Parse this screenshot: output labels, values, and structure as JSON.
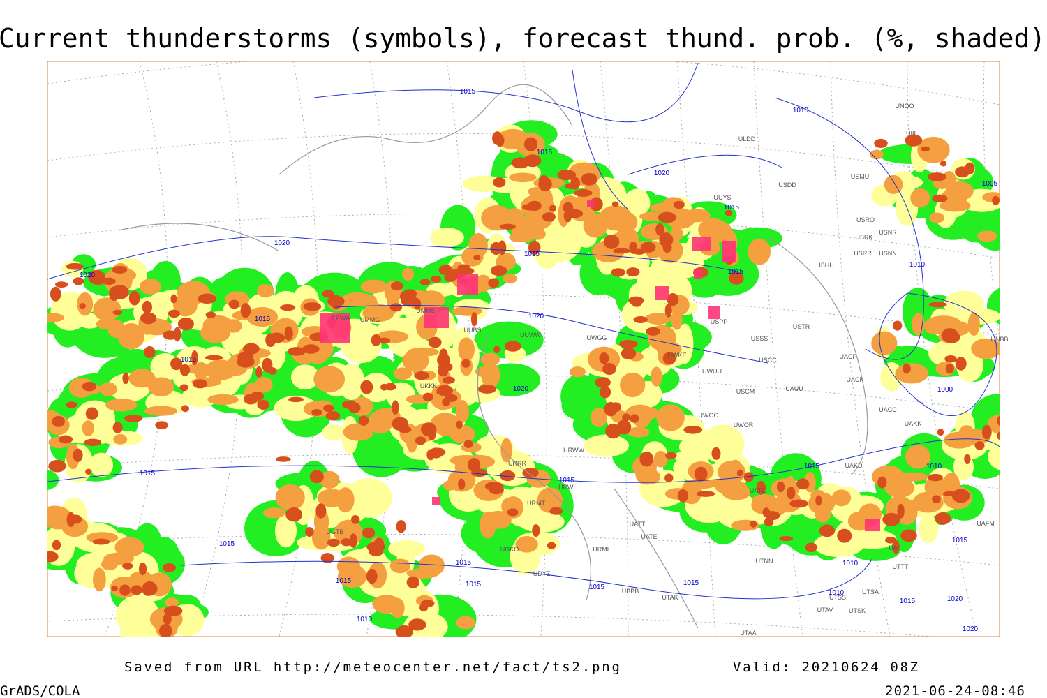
{
  "title": "Current thunderstorms (symbols), forecast thund. prob. (%, shaded)",
  "footer": {
    "source": "Saved from URL http://meteocenter.net/fact/ts2.png",
    "valid": "Valid: 20210624 08Z",
    "software": "GrADS/COLA",
    "timestamp": "2021-06-24-08:46"
  },
  "isobar_labels": [
    "1015",
    "1010",
    "1020",
    "1015",
    "1015",
    "1020",
    "1020",
    "1015",
    "1015",
    "1010",
    "1020",
    "1015",
    "1015",
    "1020",
    "1000",
    "1015",
    "1015",
    "1015",
    "1010",
    "1015",
    "1015",
    "1015",
    "1015",
    "1015",
    "1015",
    "1010",
    "1015",
    "1010",
    "1015",
    "1020",
    "1020",
    "1005",
    "1010"
  ],
  "station_labels": [
    "ULDD",
    "UUYS",
    "USMU",
    "USDD",
    "USRO",
    "USRK",
    "USNR",
    "USRR",
    "USNN",
    "USHH",
    "USTR",
    "USSS",
    "USCC",
    "UWUU",
    "USCM",
    "UAUU",
    "UACP",
    "UACK",
    "UACC",
    "UAKK",
    "UAKD",
    "UWOO",
    "UWOR",
    "USPP",
    "UWKE",
    "UWGG",
    "UUWW",
    "UUBS",
    "UMMS",
    "UMMG",
    "EPWA",
    "UKKK",
    "URWW",
    "URWI",
    "URRR",
    "URMT",
    "UGTB",
    "UBBB",
    "UTAK",
    "UTAA",
    "UTSS",
    "UTSA",
    "UTAV",
    "UTSK",
    "UTNN",
    "UATG",
    "UAII",
    "UAFM",
    "UTTT",
    "UNOO",
    "UIII",
    "UNBB",
    "UATE",
    "UATT",
    "URML",
    "UGKO",
    "UDYZ"
  ]
}
